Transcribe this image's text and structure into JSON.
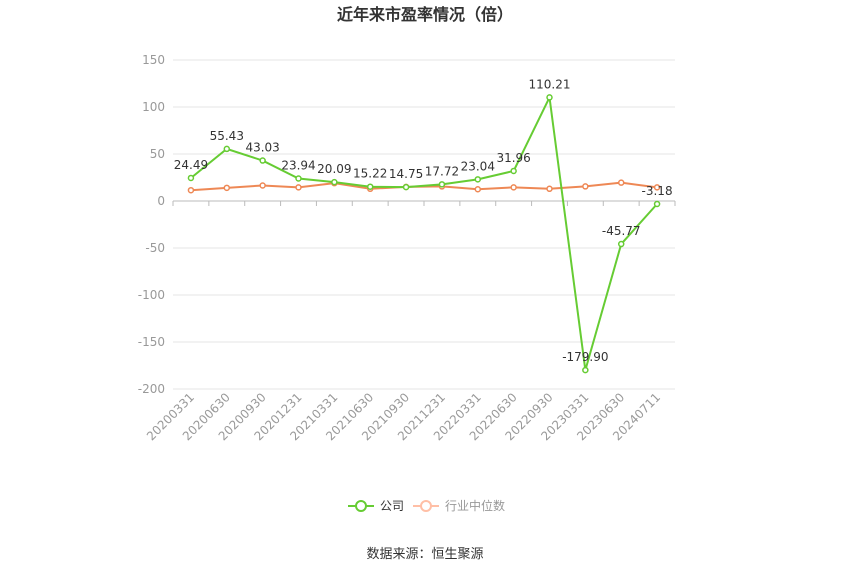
{
  "chart_data": {
    "type": "line",
    "title": "近年来市盈率情况（倍）",
    "categories": [
      "20200331",
      "20200630",
      "20200930",
      "20201231",
      "20210331",
      "20210630",
      "20210930",
      "20211231",
      "20220331",
      "20220630",
      "20220930",
      "20230331",
      "20230630",
      "20240711"
    ],
    "series": [
      {
        "name": "公司",
        "color": "#66cc33",
        "values": [
          24.49,
          55.43,
          43.03,
          23.94,
          20.09,
          15.22,
          14.75,
          17.72,
          23.04,
          31.96,
          110.21,
          -179.9,
          -45.77,
          -3.18
        ],
        "labels": [
          "24.49",
          "55.43",
          "43.03",
          "23.94",
          "20.09",
          "15.22",
          "14.75",
          "17.72",
          "23.04",
          "31.96",
          "110.21",
          "-179.90",
          "-45.77",
          "-3.18"
        ]
      },
      {
        "name": "行业中位数",
        "color": "#ee8855",
        "values": [
          11.5,
          14.0,
          16.5,
          14.5,
          19.0,
          13.0,
          15.0,
          15.5,
          12.5,
          14.5,
          13.0,
          15.5,
          19.5,
          14.5
        ]
      }
    ],
    "yticks": [
      150,
      100,
      50,
      0,
      -50,
      -100,
      -150,
      -200
    ],
    "ylim": [
      -200,
      150
    ],
    "grid": true,
    "legend": "bottom-center"
  },
  "source": "数据来源：恒生聚源"
}
